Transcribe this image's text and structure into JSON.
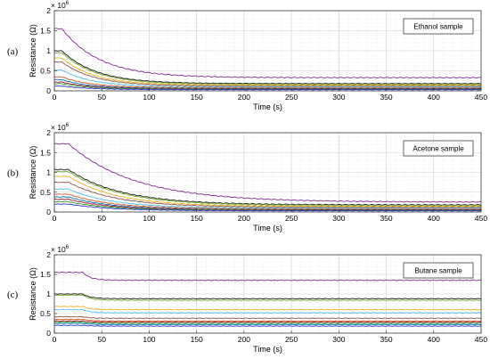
{
  "chart_data": [
    {
      "type": "line",
      "panel_letter": "(a)",
      "legend": "Ethanol sample",
      "xlabel": "Time (s)",
      "ylabel": "Resistance (Ω)",
      "exponent_base": "× 10",
      "exponent_power": "6",
      "xlim": [
        0,
        450
      ],
      "ylim": [
        0,
        2
      ],
      "xticks": [
        "0",
        "50",
        "100",
        "150",
        "200",
        "250",
        "300",
        "350",
        "400",
        "450"
      ],
      "yticks": [
        "0",
        "0.5",
        "1",
        "1.5",
        "2"
      ],
      "grid": true,
      "series": [
        {
          "color": "#7e2f8e",
          "start": 1.55,
          "end": 0.33,
          "hold": 8,
          "tau": 40
        },
        {
          "color": "#1a1a1a",
          "start": 1.0,
          "end": 0.18,
          "hold": 8,
          "tau": 36
        },
        {
          "color": "#77ac30",
          "start": 0.95,
          "end": 0.16,
          "hold": 8,
          "tau": 36
        },
        {
          "color": "#edb120",
          "start": 0.82,
          "end": 0.14,
          "hold": 8,
          "tau": 34
        },
        {
          "color": "#8c564b",
          "start": 0.72,
          "end": 0.12,
          "hold": 8,
          "tau": 34
        },
        {
          "color": "#4dbeee",
          "start": 0.52,
          "end": 0.1,
          "hold": 8,
          "tau": 32
        },
        {
          "color": "#d95319",
          "start": 0.35,
          "end": 0.08,
          "hold": 8,
          "tau": 30
        },
        {
          "color": "#0072bd",
          "start": 0.28,
          "end": 0.06,
          "hold": 8,
          "tau": 30
        },
        {
          "color": "#a2142f",
          "start": 0.22,
          "end": 0.05,
          "hold": 8,
          "tau": 30
        },
        {
          "color": "#2ca02c",
          "start": 0.18,
          "end": 0.04,
          "hold": 8,
          "tau": 30
        },
        {
          "color": "#3333cc",
          "start": 0.12,
          "end": 0.03,
          "hold": 8,
          "tau": 30
        }
      ]
    },
    {
      "type": "line",
      "panel_letter": "(b)",
      "legend": "Acetone sample",
      "xlabel": "Time (s)",
      "ylabel": "Resistance (Ω)",
      "exponent_base": "× 10",
      "exponent_power": "6",
      "xlim": [
        0,
        450
      ],
      "ylim": [
        0,
        2
      ],
      "xticks": [
        "0",
        "50",
        "100",
        "150",
        "200",
        "250",
        "300",
        "350",
        "400",
        "450"
      ],
      "yticks": [
        "0",
        "0.5",
        "1",
        "1.5",
        "2"
      ],
      "grid": true,
      "series": [
        {
          "color": "#7e2f8e",
          "start": 1.72,
          "end": 0.25,
          "hold": 15,
          "tau": 70
        },
        {
          "color": "#1a1a1a",
          "start": 1.07,
          "end": 0.18,
          "hold": 15,
          "tau": 55
        },
        {
          "color": "#77ac30",
          "start": 1.02,
          "end": 0.16,
          "hold": 15,
          "tau": 55
        },
        {
          "color": "#edb120",
          "start": 0.9,
          "end": 0.14,
          "hold": 15,
          "tau": 50
        },
        {
          "color": "#8c564b",
          "start": 0.75,
          "end": 0.12,
          "hold": 15,
          "tau": 50
        },
        {
          "color": "#4dbeee",
          "start": 0.58,
          "end": 0.1,
          "hold": 15,
          "tau": 45
        },
        {
          "color": "#d95319",
          "start": 0.45,
          "end": 0.08,
          "hold": 15,
          "tau": 45
        },
        {
          "color": "#0072bd",
          "start": 0.38,
          "end": 0.06,
          "hold": 15,
          "tau": 45
        },
        {
          "color": "#a2142f",
          "start": 0.32,
          "end": 0.05,
          "hold": 15,
          "tau": 45
        },
        {
          "color": "#2ca02c",
          "start": 0.26,
          "end": 0.04,
          "hold": 15,
          "tau": 45
        },
        {
          "color": "#3333cc",
          "start": 0.2,
          "end": 0.03,
          "hold": 15,
          "tau": 45
        }
      ]
    },
    {
      "type": "line",
      "panel_letter": "(c)",
      "legend": "Butane sample",
      "xlabel": "Time (s)",
      "ylabel": "Resistance (Ω)",
      "exponent_base": "× 10",
      "exponent_power": "6",
      "xlim": [
        0,
        450
      ],
      "ylim": [
        0,
        2
      ],
      "xticks": [
        "0",
        "50",
        "100",
        "150",
        "200",
        "250",
        "300",
        "350",
        "400",
        "450"
      ],
      "yticks": [
        "0",
        "0.5",
        "1",
        "1.5",
        "2"
      ],
      "grid": true,
      "series": [
        {
          "color": "#7e2f8e",
          "start": 1.55,
          "end": 1.35,
          "hold": 30,
          "tau": 8
        },
        {
          "color": "#1a1a1a",
          "start": 1.0,
          "end": 0.88,
          "hold": 30,
          "tau": 8
        },
        {
          "color": "#77ac30",
          "start": 0.97,
          "end": 0.84,
          "hold": 30,
          "tau": 8
        },
        {
          "color": "#edb120",
          "start": 0.68,
          "end": 0.6,
          "hold": 30,
          "tau": 8
        },
        {
          "color": "#4dbeee",
          "start": 0.6,
          "end": 0.52,
          "hold": 30,
          "tau": 8
        },
        {
          "color": "#8c564b",
          "start": 0.42,
          "end": 0.38,
          "hold": 30,
          "tau": 8
        },
        {
          "color": "#d95319",
          "start": 0.35,
          "end": 0.31,
          "hold": 30,
          "tau": 8
        },
        {
          "color": "#a2142f",
          "start": 0.31,
          "end": 0.28,
          "hold": 30,
          "tau": 8
        },
        {
          "color": "#2ca02c",
          "start": 0.28,
          "end": 0.25,
          "hold": 30,
          "tau": 8
        },
        {
          "color": "#0072bd",
          "start": 0.25,
          "end": 0.22,
          "hold": 30,
          "tau": 8
        },
        {
          "color": "#3333cc",
          "start": 0.2,
          "end": 0.18,
          "hold": 30,
          "tau": 8
        }
      ]
    }
  ]
}
